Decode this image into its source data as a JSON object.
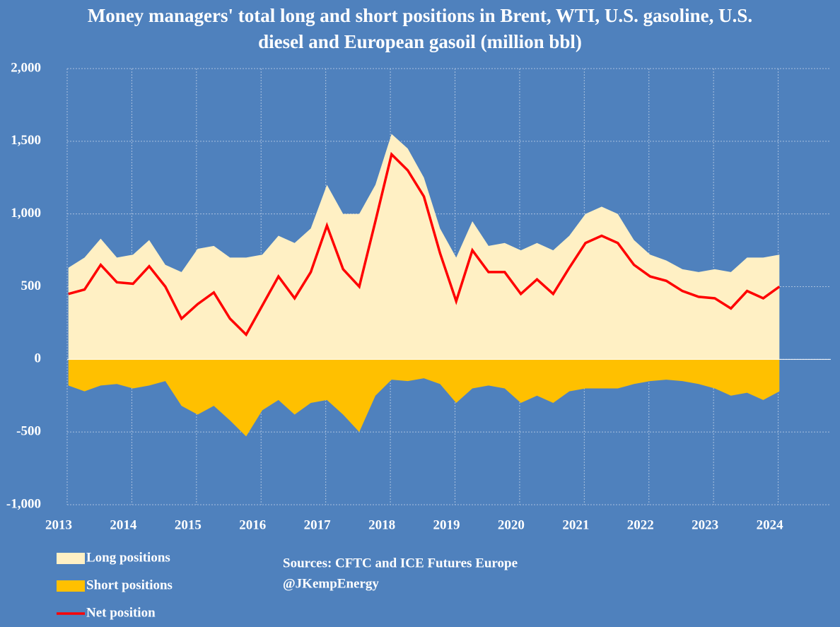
{
  "chart_data": {
    "type": "area",
    "title": "Money managers' total long and short positions in Brent, WTI, U.S. gasoline, U.S. diesel and European gasoil  (million bbl)",
    "x": [
      2013.15,
      2013.4,
      2013.65,
      2013.9,
      2014.15,
      2014.4,
      2014.65,
      2014.9,
      2015.15,
      2015.4,
      2015.65,
      2015.9,
      2016.15,
      2016.4,
      2016.65,
      2016.9,
      2017.15,
      2017.4,
      2017.65,
      2017.9,
      2018.15,
      2018.4,
      2018.65,
      2018.9,
      2019.15,
      2019.4,
      2019.65,
      2019.9,
      2020.15,
      2020.4,
      2020.65,
      2020.9,
      2021.15,
      2021.4,
      2021.65,
      2021.9,
      2022.15,
      2022.4,
      2022.65,
      2022.9,
      2023.15,
      2023.4,
      2023.65,
      2023.9,
      2024.15
    ],
    "series": [
      {
        "name": "Long positions",
        "color": "#fff0c4",
        "values": [
          630,
          700,
          830,
          700,
          720,
          820,
          650,
          600,
          760,
          780,
          700,
          700,
          720,
          850,
          800,
          900,
          1200,
          1000,
          1000,
          1200,
          1550,
          1450,
          1250,
          900,
          700,
          950,
          780,
          800,
          750,
          800,
          750,
          850,
          1000,
          1050,
          1000,
          820,
          720,
          680,
          620,
          600,
          620,
          600,
          700,
          700,
          720
        ]
      },
      {
        "name": "Short positions",
        "color": "#ffc000",
        "values": [
          -180,
          -220,
          -180,
          -170,
          -200,
          -180,
          -150,
          -320,
          -380,
          -320,
          -420,
          -530,
          -350,
          -280,
          -380,
          -300,
          -280,
          -380,
          -500,
          -250,
          -140,
          -150,
          -130,
          -170,
          -300,
          -200,
          -180,
          -200,
          -300,
          -250,
          -300,
          -220,
          -200,
          -200,
          -200,
          -170,
          -150,
          -140,
          -150,
          -170,
          -200,
          -250,
          -230,
          -280,
          -220
        ]
      },
      {
        "name": "Net position",
        "color": "#ff0000",
        "values": [
          450,
          480,
          650,
          530,
          520,
          640,
          500,
          280,
          380,
          460,
          280,
          170,
          370,
          570,
          420,
          600,
          920,
          620,
          500,
          950,
          1410,
          1300,
          1120,
          730,
          400,
          750,
          600,
          600,
          450,
          550,
          450,
          630,
          800,
          850,
          800,
          650,
          570,
          540,
          470,
          430,
          420,
          350,
          470,
          420,
          500
        ]
      }
    ],
    "xlim": [
      2013,
      2025
    ],
    "xticks": [
      2013,
      2014,
      2015,
      2016,
      2017,
      2018,
      2019,
      2020,
      2021,
      2022,
      2023,
      2024
    ],
    "ylim": [
      -1000,
      2000
    ],
    "yticks": [
      {
        "value": -1000,
        "label": "-1,000"
      },
      {
        "value": -500,
        "label": "-500"
      },
      0,
      500,
      {
        "value": 1000,
        "label": "1,000"
      },
      {
        "value": 1500,
        "label": "1,500"
      },
      {
        "value": 2000,
        "label": "2,000"
      }
    ],
    "grid": true,
    "annotations": [
      "Sources: CFTC and ICE Futures Europe",
      "@JKempEnergy"
    ]
  }
}
